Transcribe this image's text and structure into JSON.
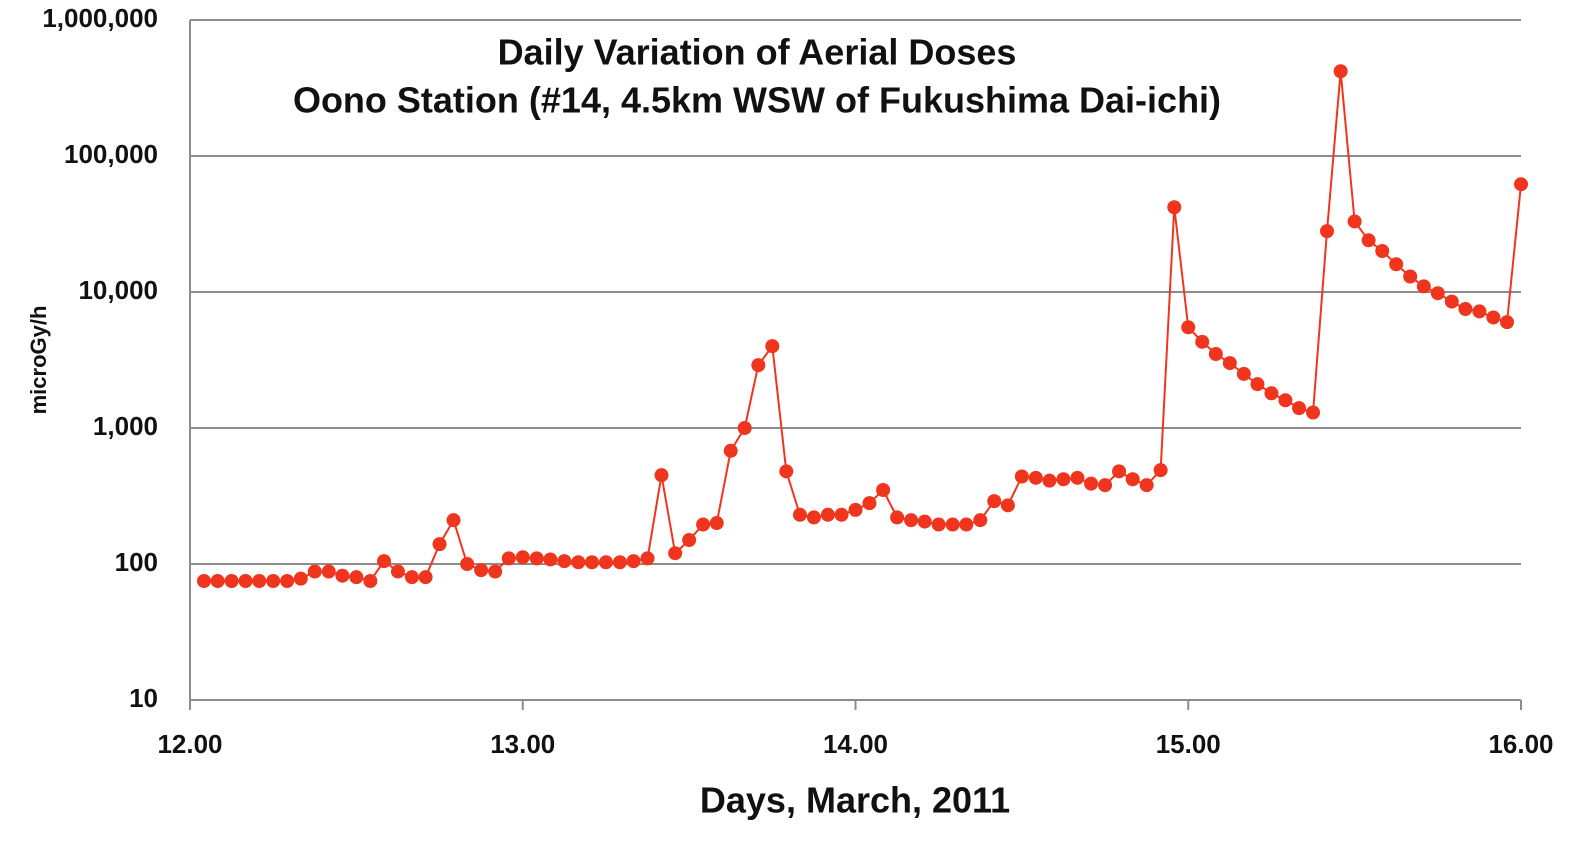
{
  "chart_data": {
    "type": "line",
    "title": "Daily Variation of Aerial Doses",
    "subtitle": "Oono Station (#14, 4.5km WSW of Fukushima Dai-ichi)",
    "xlabel": "Days, March, 2011",
    "ylabel": "microGy/h",
    "log_y": true,
    "grid": true,
    "xlim": [
      12,
      16
    ],
    "xticks": [
      {
        "value": 12,
        "label": "12.00"
      },
      {
        "value": 13,
        "label": "13.00"
      },
      {
        "value": 14,
        "label": "14.00"
      },
      {
        "value": 15,
        "label": "15.00"
      },
      {
        "value": 16,
        "label": "16.00"
      }
    ],
    "ylim": [
      10,
      1000000
    ],
    "yticks": [
      10,
      100,
      {
        "value": 1000,
        "label": "1,000"
      },
      {
        "value": 10000,
        "label": "10,000"
      },
      {
        "value": 100000,
        "label": "100,000"
      },
      {
        "value": 1000000,
        "label": "1,000,000"
      }
    ],
    "x": [
      12.042,
      12.083,
      12.125,
      12.167,
      12.208,
      12.25,
      12.292,
      12.333,
      12.375,
      12.417,
      12.458,
      12.5,
      12.542,
      12.583,
      12.625,
      12.667,
      12.708,
      12.75,
      12.792,
      12.833,
      12.875,
      12.917,
      12.958,
      13.0,
      13.042,
      13.083,
      13.125,
      13.167,
      13.208,
      13.25,
      13.292,
      13.333,
      13.375,
      13.417,
      13.458,
      13.5,
      13.542,
      13.583,
      13.625,
      13.667,
      13.708,
      13.75,
      13.792,
      13.833,
      13.875,
      13.917,
      13.958,
      14.0,
      14.042,
      14.083,
      14.125,
      14.167,
      14.208,
      14.25,
      14.292,
      14.333,
      14.375,
      14.417,
      14.458,
      14.5,
      14.542,
      14.583,
      14.625,
      14.667,
      14.708,
      14.75,
      14.792,
      14.833,
      14.875,
      14.917,
      14.958,
      15.0,
      15.042,
      15.083,
      15.125,
      15.167,
      15.208,
      15.25,
      15.292,
      15.333,
      15.375,
      15.417,
      15.458,
      15.5,
      15.542,
      15.583,
      15.625,
      15.667,
      15.708,
      15.75,
      15.792,
      15.833,
      15.875,
      15.917,
      15.958,
      16.0
    ],
    "series": [
      {
        "name": "Oono Station",
        "color": "#f0351e",
        "values": [
          75,
          75,
          75,
          75,
          75,
          75,
          75,
          78,
          88,
          88,
          82,
          80,
          75,
          105,
          88,
          80,
          80,
          140,
          210,
          100,
          90,
          88,
          110,
          112,
          110,
          108,
          105,
          103,
          103,
          103,
          103,
          105,
          110,
          450,
          120,
          150,
          195,
          200,
          680,
          1000,
          2900,
          4000,
          480,
          230,
          220,
          230,
          230,
          250,
          280,
          350,
          220,
          210,
          205,
          195,
          195,
          195,
          210,
          290,
          270,
          440,
          430,
          410,
          420,
          430,
          390,
          380,
          480,
          420,
          380,
          490,
          42000,
          5500,
          4300,
          3500,
          3000,
          2500,
          2100,
          1800,
          1600,
          1400,
          1300,
          28000,
          420000,
          33000,
          24000,
          20000,
          16000,
          13000,
          11000,
          9800,
          8500,
          7500,
          7200,
          6500,
          6000,
          62000
        ]
      }
    ]
  }
}
